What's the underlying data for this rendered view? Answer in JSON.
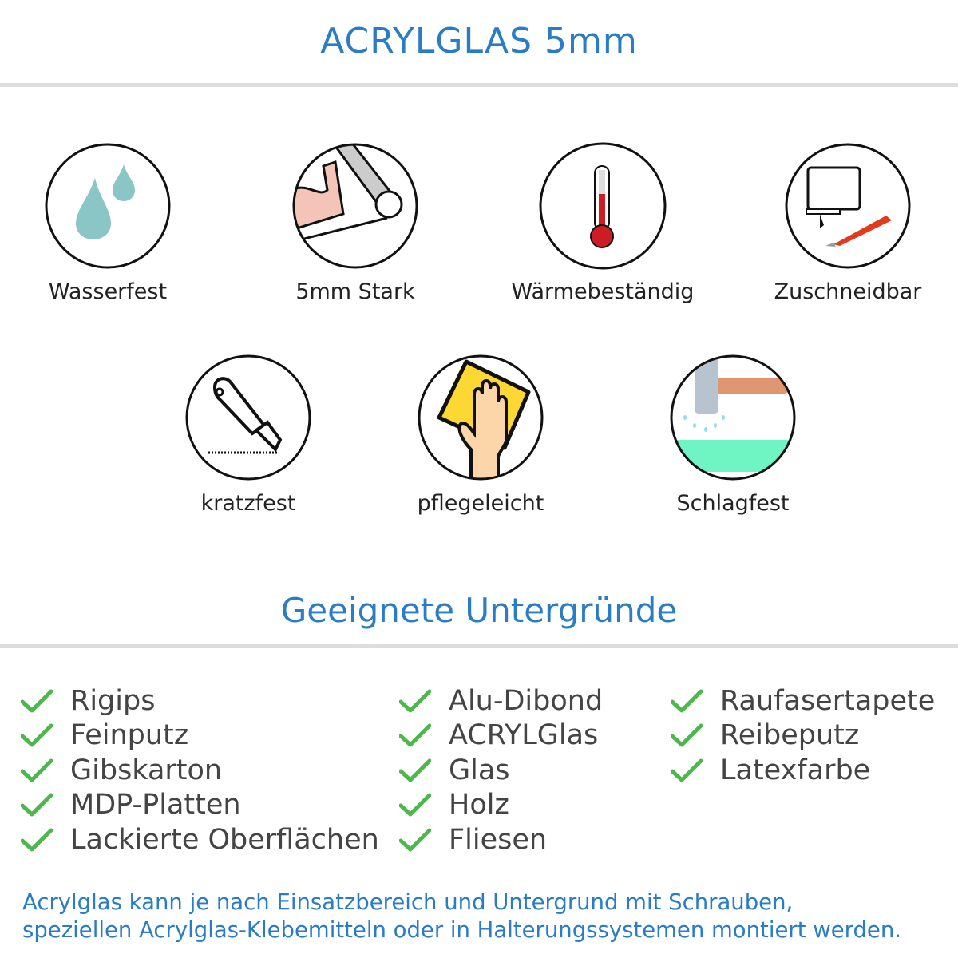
{
  "header": {
    "title": "ACRYLGLAS 5mm"
  },
  "features": [
    {
      "label": "Wasserfest",
      "icon": "water-drops-icon"
    },
    {
      "label": "5mm Stark",
      "icon": "strong-arm-icon"
    },
    {
      "label": "Wärmebeständig",
      "icon": "thermometer-icon"
    },
    {
      "label": "Zuschneidbar",
      "icon": "jigsaw-cutter-icon"
    },
    {
      "label": "kratzfest",
      "icon": "utility-knife-icon"
    },
    {
      "label": "pflegeleicht",
      "icon": "hand-cloth-icon"
    },
    {
      "label": "Schlagfest",
      "icon": "hammer-icon"
    }
  ],
  "surfaces": {
    "title": "Geeignete Untergründe",
    "columns": [
      [
        "Rigips",
        "Feinputz",
        "Gibskarton",
        "MDP-Platten",
        "Lackierte Oberflächen"
      ],
      [
        "Alu-Dibond",
        "ACRYLGlas",
        "Glas",
        "Holz",
        "Fliesen"
      ],
      [
        "Raufasertapete",
        "Reibeputz",
        "Latexfarbe"
      ]
    ],
    "check_color": "#4cb84c"
  },
  "footer": {
    "line1": "Acrylglas kann je nach Einsatzbereich und Untergrund mit Schrauben,",
    "line2": "speziellen Acrylglas-Klebemitteln oder in Halterungssystemen montiert werden."
  },
  "colors": {
    "accent": "#2a7cc4",
    "text": "#444444"
  }
}
